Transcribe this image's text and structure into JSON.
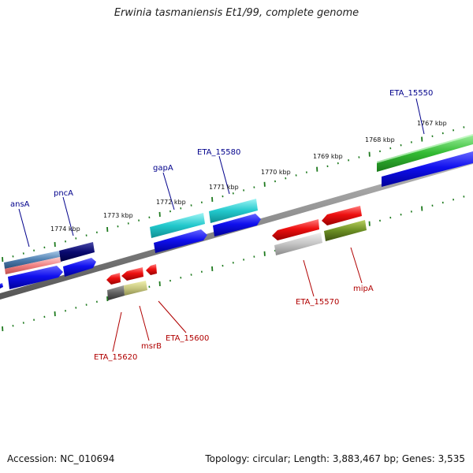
{
  "title": "Erwinia tasmaniensis Et1/99, complete genome",
  "accession": "Accession: NC_010694",
  "topology": "Topology: circular; Length: 3,883,467 bp; Genes: 3,535",
  "colors": {
    "backbone": "#888888",
    "tick": "#1e7a1e",
    "label_forward": "#00008b",
    "label_reverse": "#b00000"
  },
  "kbp_labels": [
    "1767 kbp",
    "1768 kbp",
    "1769 kbp",
    "1770 kbp",
    "1771 kbp",
    "1772 kbp",
    "1773 kbp",
    "1774 kbp"
  ],
  "gene_labels_forward": [
    "ETA_15550",
    "ETA_15580",
    "gapA",
    "pncA",
    "ansA"
  ],
  "gene_labels_reverse": [
    "ETA_15570",
    "mipA",
    "ETA_15600",
    "msrB",
    "ETA_15620"
  ]
}
